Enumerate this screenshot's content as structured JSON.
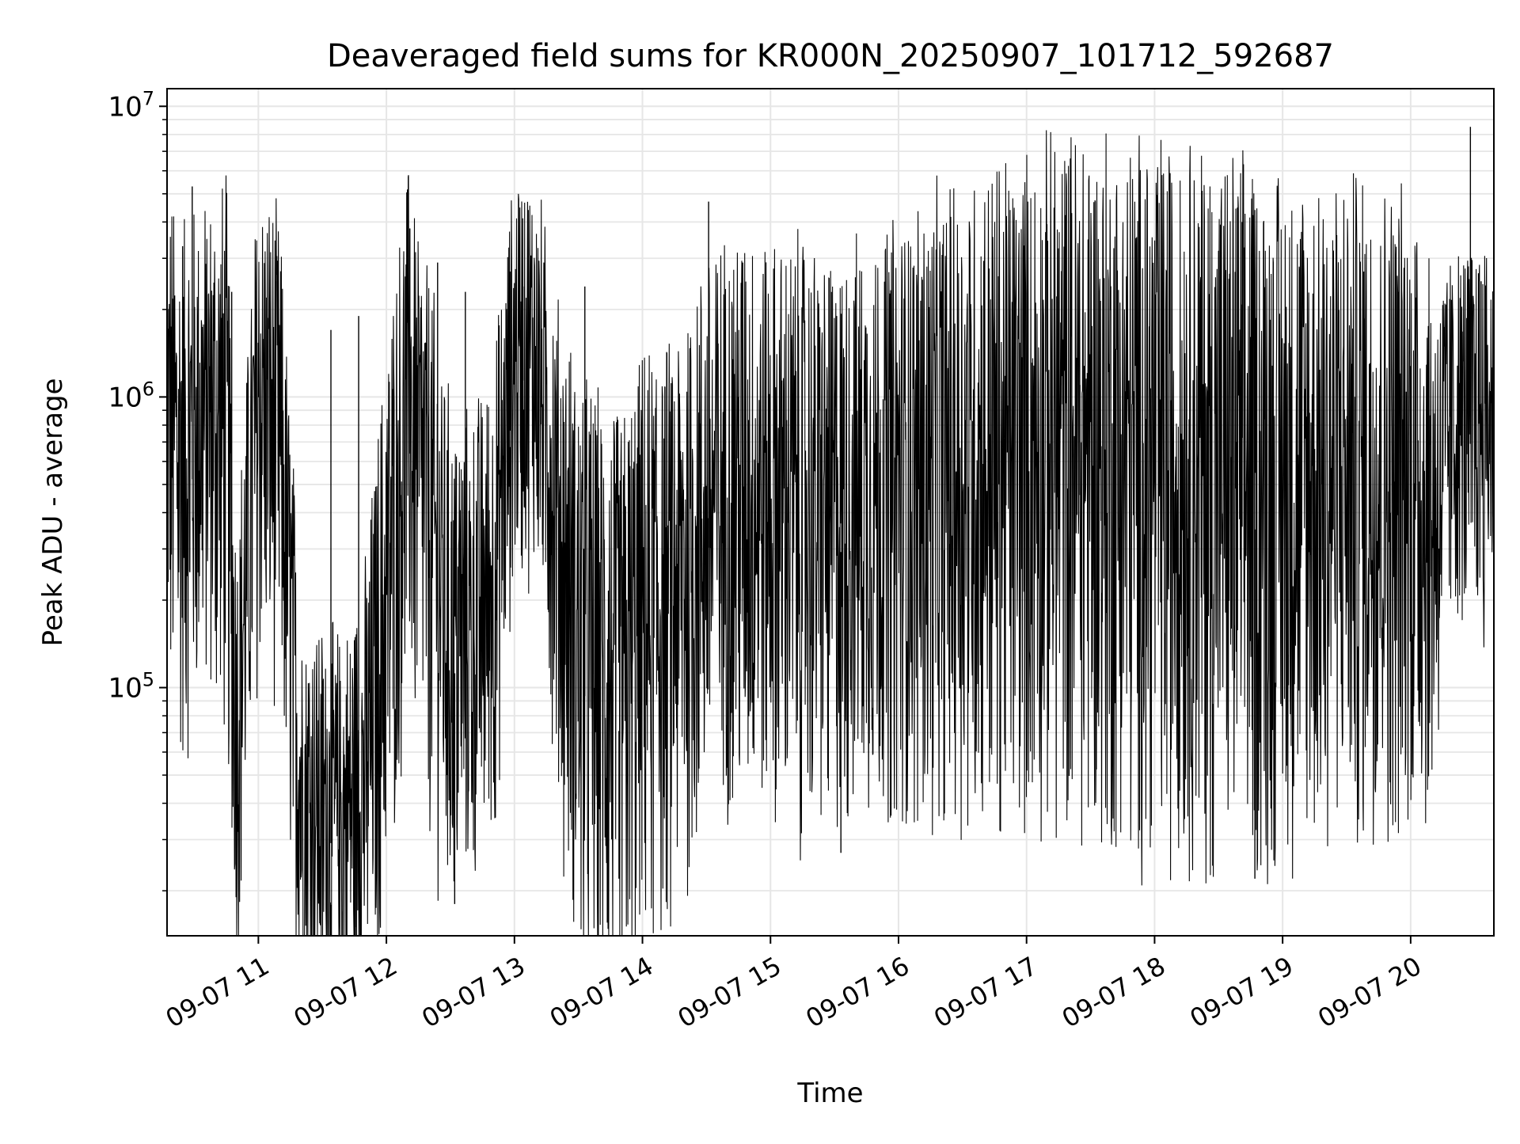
{
  "chart_data": {
    "type": "line",
    "title": "Deaveraged field sums for KR000N_20250907_101712_592687",
    "xlabel": "Time",
    "ylabel": "Peak ADU - average",
    "x_scale": "time",
    "y_scale": "log",
    "xlim": [
      "2025-09-07 10:17:12",
      "2025-09-07 20:39:00"
    ],
    "ylim": [
      14000,
      11500000
    ],
    "x_ticks": [
      {
        "time": "2025-09-07 11:00",
        "label": "09-07 11"
      },
      {
        "time": "2025-09-07 12:00",
        "label": "09-07 12"
      },
      {
        "time": "2025-09-07 13:00",
        "label": "09-07 13"
      },
      {
        "time": "2025-09-07 14:00",
        "label": "09-07 14"
      },
      {
        "time": "2025-09-07 15:00",
        "label": "09-07 15"
      },
      {
        "time": "2025-09-07 16:00",
        "label": "09-07 16"
      },
      {
        "time": "2025-09-07 17:00",
        "label": "09-07 17"
      },
      {
        "time": "2025-09-07 18:00",
        "label": "09-07 18"
      },
      {
        "time": "2025-09-07 19:00",
        "label": "09-07 19"
      },
      {
        "time": "2025-09-07 20:00",
        "label": "09-07 20"
      }
    ],
    "y_ticks": [
      {
        "value": 100000,
        "base": "10",
        "exp": "5"
      },
      {
        "value": 1000000,
        "base": "10",
        "exp": "6"
      },
      {
        "value": 10000000,
        "base": "10",
        "exp": "7"
      }
    ],
    "grid": true,
    "line_color": "#000000",
    "series": [
      {
        "x": [
          "2025-09-07 10:17",
          "2025-09-07 10:25",
          "2025-09-07 10:35",
          "2025-09-07 10:45",
          "2025-09-07 10:50",
          "2025-09-07 11:00",
          "2025-09-07 11:10",
          "2025-09-07 11:20",
          "2025-09-07 11:30",
          "2025-09-07 11:40",
          "2025-09-07 11:50",
          "2025-09-07 12:00",
          "2025-09-07 12:10",
          "2025-09-07 12:20",
          "2025-09-07 12:30",
          "2025-09-07 12:40",
          "2025-09-07 12:50",
          "2025-09-07 13:00",
          "2025-09-07 13:10",
          "2025-09-07 13:20",
          "2025-09-07 13:30",
          "2025-09-07 13:40",
          "2025-09-07 13:50",
          "2025-09-07 14:00",
          "2025-09-07 14:15",
          "2025-09-07 14:30",
          "2025-09-07 14:45",
          "2025-09-07 15:00",
          "2025-09-07 15:15",
          "2025-09-07 15:30",
          "2025-09-07 15:45",
          "2025-09-07 16:00",
          "2025-09-07 16:15",
          "2025-09-07 16:30",
          "2025-09-07 16:45",
          "2025-09-07 17:00",
          "2025-09-07 17:15",
          "2025-09-07 17:30",
          "2025-09-07 17:45",
          "2025-09-07 18:00",
          "2025-09-07 18:15",
          "2025-09-07 18:30",
          "2025-09-07 18:45",
          "2025-09-07 19:00",
          "2025-09-07 19:15",
          "2025-09-07 19:30",
          "2025-09-07 19:45",
          "2025-09-07 20:00",
          "2025-09-07 20:10",
          "2025-09-07 20:20",
          "2025-09-07 20:30",
          "2025-09-07 20:39"
        ],
        "center": [
          600000,
          450000,
          650000,
          550000,
          60000,
          800000,
          550000,
          35000,
          30000,
          28000,
          40000,
          150000,
          700000,
          280000,
          110000,
          120000,
          180000,
          1100000,
          1200000,
          300000,
          100000,
          80000,
          70000,
          120000,
          150000,
          300000,
          350000,
          320000,
          300000,
          280000,
          350000,
          350000,
          380000,
          400000,
          420000,
          450000,
          480000,
          450000,
          420000,
          420000,
          400000,
          380000,
          350000,
          350000,
          350000,
          380000,
          380000,
          400000,
          300000,
          650000,
          700000,
          700000
        ],
        "spread": [
          2.2,
          2.3,
          2.0,
          2.4,
          1.8,
          2.1,
          2.0,
          1.8,
          1.7,
          1.7,
          1.9,
          2.4,
          2.2,
          2.3,
          2.2,
          2.0,
          2.0,
          1.7,
          1.6,
          2.0,
          2.6,
          2.6,
          2.6,
          2.5,
          2.4,
          2.4,
          2.5,
          2.4,
          2.5,
          2.4,
          2.4,
          2.5,
          2.6,
          2.7,
          2.8,
          2.8,
          2.9,
          3.0,
          3.0,
          3.0,
          3.0,
          3.0,
          3.0,
          2.9,
          2.9,
          2.8,
          2.7,
          2.7,
          2.3,
          1.6,
          1.6,
          1.6
        ]
      }
    ],
    "spikes": [
      {
        "x": "2025-09-07 10:29:00",
        "y": 5300000
      },
      {
        "x": "2025-09-07 10:24:30",
        "y": 3300000
      },
      {
        "x": "2025-09-07 10:47:30",
        "y": 2300000
      },
      {
        "x": "2025-09-07 11:08:00",
        "y": 2500000
      },
      {
        "x": "2025-09-07 11:34:00",
        "y": 1700000
      },
      {
        "x": "2025-09-07 11:47:00",
        "y": 1900000
      },
      {
        "x": "2025-09-07 12:11:00",
        "y": 3800000
      },
      {
        "x": "2025-09-07 12:24:00",
        "y": 2900000
      },
      {
        "x": "2025-09-07 12:37:00",
        "y": 2300000
      },
      {
        "x": "2025-09-07 12:58:00",
        "y": 2700000
      },
      {
        "x": "2025-09-07 13:04:00",
        "y": 2400000
      },
      {
        "x": "2025-09-07 13:33:00",
        "y": 2400000
      },
      {
        "x": "2025-09-07 14:31:00",
        "y": 4700000
      },
      {
        "x": "2025-09-07 14:47:00",
        "y": 2900000
      },
      {
        "x": "2025-09-07 15:31:00",
        "y": 1900000
      },
      {
        "x": "2025-09-07 17:25:00",
        "y": 1100000
      },
      {
        "x": "2025-09-07 18:41:00",
        "y": 4000000
      },
      {
        "x": "2025-09-07 19:38:00",
        "y": 2700000
      },
      {
        "x": "2025-09-07 19:54:00",
        "y": 2300000
      },
      {
        "x": "2025-09-07 20:28:00",
        "y": 8500000
      },
      {
        "x": "2025-09-07 20:33:00",
        "y": 2500000
      },
      {
        "x": "2025-09-07 15:33:00",
        "y": 27000
      },
      {
        "x": "2025-09-07 18:47:00",
        "y": 22000
      },
      {
        "x": "2025-09-07 11:45:30",
        "y": 15000
      },
      {
        "x": "2025-09-07 12:32:00",
        "y": 18000
      },
      {
        "x": "2025-09-07 13:49:00",
        "y": 22000
      }
    ]
  }
}
